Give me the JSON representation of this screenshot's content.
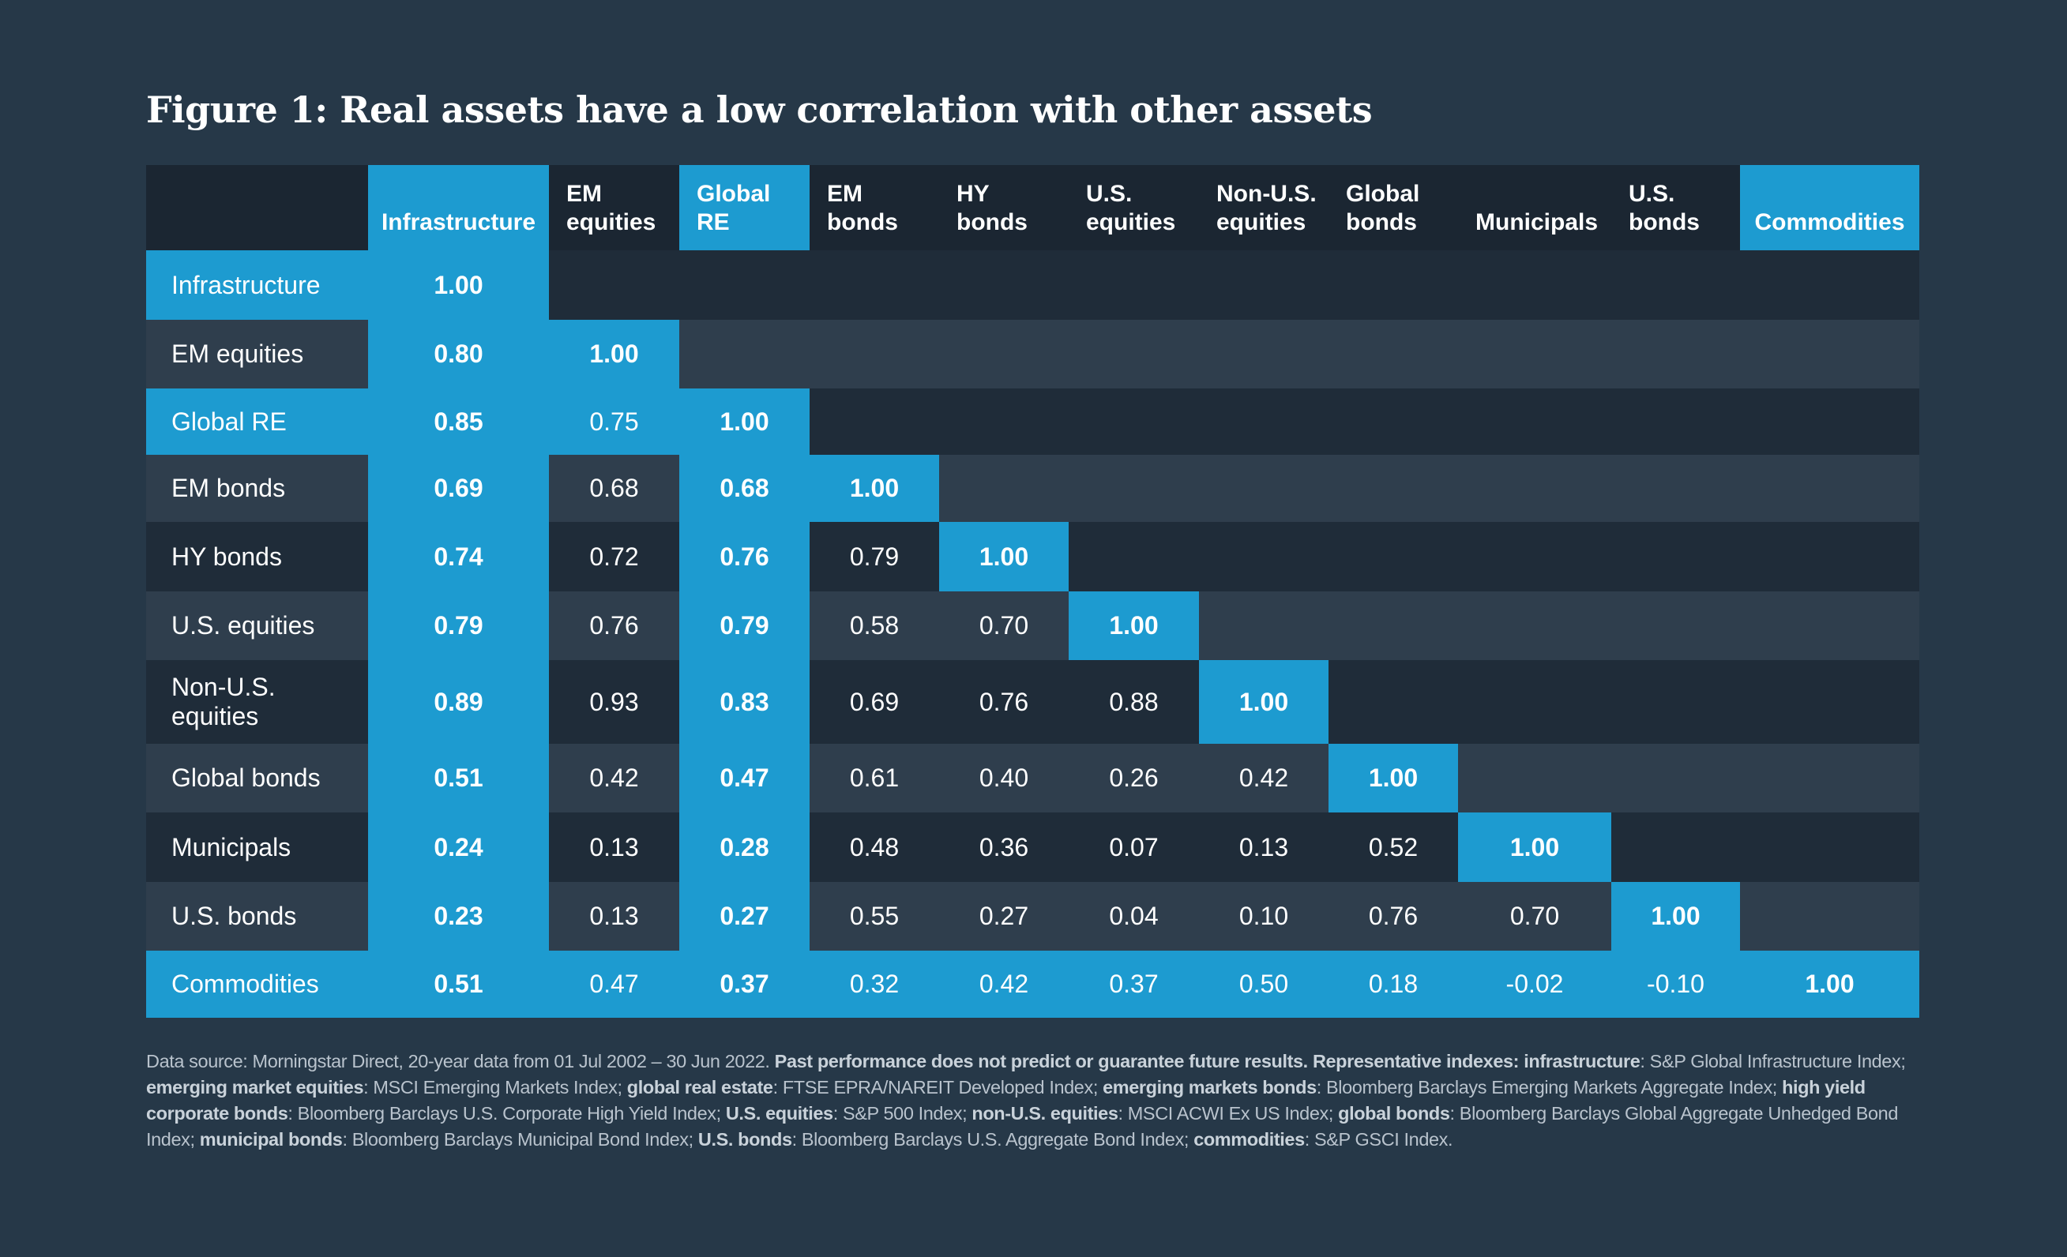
{
  "title": "Figure 1: Real assets have a low correlation with other assets",
  "colors": {
    "background": "#263848",
    "header_dark": "#1b2632",
    "row_dark": "#1f2c39",
    "row_light": "#2f3e4d",
    "accent_blue": "#1d9bd0",
    "text": "#ffffff",
    "footnote_text": "#b9c3cd"
  },
  "chart_data": {
    "type": "table",
    "title": "Figure 1: Real assets have a low correlation with other assets",
    "columns": [
      {
        "line1": "",
        "line2": "Infrastructure",
        "highlight": true
      },
      {
        "line1": "EM",
        "line2": "equities",
        "highlight": false
      },
      {
        "line1": "Global",
        "line2": "RE",
        "highlight": true
      },
      {
        "line1": "EM",
        "line2": "bonds",
        "highlight": false
      },
      {
        "line1": "HY",
        "line2": "bonds",
        "highlight": false
      },
      {
        "line1": "U.S.",
        "line2": "equities",
        "highlight": false
      },
      {
        "line1": "Non-U.S.",
        "line2": "equities",
        "highlight": false
      },
      {
        "line1": "Global",
        "line2": "bonds",
        "highlight": false
      },
      {
        "line1": "",
        "line2": "Municipals",
        "highlight": false
      },
      {
        "line1": "U.S.",
        "line2": "bonds",
        "highlight": false
      },
      {
        "line1": "",
        "line2": "Commodities",
        "highlight": true
      }
    ],
    "rows": [
      {
        "label": "Infrastructure",
        "highlight": true,
        "values": [
          "1.00"
        ]
      },
      {
        "label": "EM equities",
        "highlight": false,
        "values": [
          "0.80",
          "1.00"
        ]
      },
      {
        "label": "Global RE",
        "highlight": true,
        "values": [
          "0.85",
          "0.75",
          "1.00"
        ]
      },
      {
        "label": "EM bonds",
        "highlight": false,
        "values": [
          "0.69",
          "0.68",
          "0.68",
          "1.00"
        ]
      },
      {
        "label": "HY bonds",
        "highlight": false,
        "values": [
          "0.74",
          "0.72",
          "0.76",
          "0.79",
          "1.00"
        ]
      },
      {
        "label": "U.S. equities",
        "highlight": false,
        "values": [
          "0.79",
          "0.76",
          "0.79",
          "0.58",
          "0.70",
          "1.00"
        ]
      },
      {
        "label": "Non-U.S. equities",
        "highlight": false,
        "values": [
          "0.89",
          "0.93",
          "0.83",
          "0.69",
          "0.76",
          "0.88",
          "1.00"
        ]
      },
      {
        "label": "Global bonds",
        "highlight": false,
        "values": [
          "0.51",
          "0.42",
          "0.47",
          "0.61",
          "0.40",
          "0.26",
          "0.42",
          "1.00"
        ]
      },
      {
        "label": "Municipals",
        "highlight": false,
        "values": [
          "0.24",
          "0.13",
          "0.28",
          "0.48",
          "0.36",
          "0.07",
          "0.13",
          "0.52",
          "1.00"
        ]
      },
      {
        "label": "U.S. bonds",
        "highlight": false,
        "values": [
          "0.23",
          "0.13",
          "0.27",
          "0.55",
          "0.27",
          "0.04",
          "0.10",
          "0.76",
          "0.70",
          "1.00"
        ]
      },
      {
        "label": "Commodities",
        "highlight": true,
        "values": [
          "0.51",
          "0.47",
          "0.37",
          "0.32",
          "0.42",
          "0.37",
          "0.50",
          "0.18",
          "-0.02",
          "-0.10",
          "1.00"
        ]
      }
    ]
  },
  "footnote": [
    {
      "text": "Data source: Morningstar Direct, 20-year data from 01 Jul 2002 – 30 Jun 2022. ",
      "bold": false
    },
    {
      "text": "Past performance does not predict or guarantee future results. Representative indexes: infrastructure",
      "bold": true
    },
    {
      "text": ": S&P Global Infrastructure Index; ",
      "bold": false
    },
    {
      "text": "emerging market equities",
      "bold": true
    },
    {
      "text": ": MSCI Emerging Markets Index; ",
      "bold": false
    },
    {
      "text": "global real estate",
      "bold": true
    },
    {
      "text": ": FTSE EPRA/NAREIT Developed Index; ",
      "bold": false
    },
    {
      "text": "emerging markets bonds",
      "bold": true
    },
    {
      "text": ": Bloomberg Barclays Emerging Markets Aggregate Index; ",
      "bold": false
    },
    {
      "text": "high yield corporate bonds",
      "bold": true
    },
    {
      "text": ": Bloomberg Barclays U.S. Corporate High Yield Index; ",
      "bold": false
    },
    {
      "text": "U.S. equities",
      "bold": true
    },
    {
      "text": ": S&P 500 Index; ",
      "bold": false
    },
    {
      "text": "non-U.S. equities",
      "bold": true
    },
    {
      "text": ": MSCI ACWI Ex US Index; ",
      "bold": false
    },
    {
      "text": "global bonds",
      "bold": true
    },
    {
      "text": ": Bloomberg Barclays Global Aggregate Unhedged Bond Index; ",
      "bold": false
    },
    {
      "text": "municipal bonds",
      "bold": true
    },
    {
      "text": ": Bloomberg Barclays Municipal Bond Index; ",
      "bold": false
    },
    {
      "text": "U.S. bonds",
      "bold": true
    },
    {
      "text": ": Bloomberg Barclays U.S. Aggregate Bond Index; ",
      "bold": false
    },
    {
      "text": "commodities",
      "bold": true
    },
    {
      "text": ": S&P GSCI Index.",
      "bold": false
    }
  ]
}
